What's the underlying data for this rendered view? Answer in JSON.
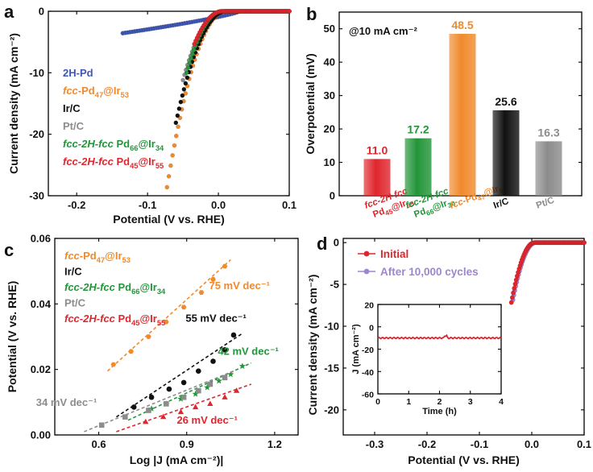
{
  "colors": {
    "blue": "#3f57b2",
    "orange": "#f08a2c",
    "black": "#111111",
    "gray": "#8c8c8c",
    "green": "#23953a",
    "red": "#e0262d",
    "purple": "#9f86cf"
  },
  "chart_data": [
    {
      "panel": "a",
      "type": "line",
      "title": "",
      "xlabel": "Potential (V vs. RHE)",
      "ylabel": "Current density (mA cm⁻²)",
      "xlim": [
        -0.24,
        0.1
      ],
      "ylim": [
        -30,
        0
      ],
      "xticks": [
        -0.2,
        -0.1,
        0.0,
        0.1
      ],
      "xtick_labels": [
        "-0.2",
        "-0.1",
        "0.0",
        "0.1"
      ],
      "yticks": [
        -30,
        -20,
        -10,
        0
      ],
      "ytick_labels": [
        "-30",
        "-20",
        "-10",
        "0"
      ],
      "legend": [
        {
          "pre": "",
          "it": "",
          "rest": "2H-Pd",
          "s1": "",
          "mid": "",
          "s2": "",
          "color": "blue"
        },
        {
          "pre": "",
          "it": "fcc",
          "rest": "-Pd",
          "s1": "47",
          "mid": "@Ir",
          "s2": "53",
          "color": "orange"
        },
        {
          "pre": "",
          "it": "",
          "rest": "Ir/C",
          "s1": "",
          "mid": "",
          "s2": "",
          "color": "black"
        },
        {
          "pre": "",
          "it": "",
          "rest": "Pt/C",
          "s1": "",
          "mid": "",
          "s2": "",
          "color": "gray"
        },
        {
          "pre": "",
          "it": "fcc-2H-fcc",
          "rest": " Pd",
          "s1": "66",
          "mid": "@Ir",
          "s2": "34",
          "color": "green"
        },
        {
          "pre": "",
          "it": "fcc-2H-fcc",
          "rest": " Pd",
          "s1": "45",
          "mid": "@Ir",
          "s2": "55",
          "color": "red"
        }
      ],
      "series": [
        {
          "name": "2H-Pd",
          "color": "blue",
          "onset": 0.03,
          "lower": -0.135,
          "scale": 0.06,
          "exp": 0.8
        },
        {
          "name": "fcc-Pd47@Ir53",
          "color": "orange",
          "onset": 0.01,
          "lower": -0.083,
          "scale": 0.0042,
          "exp": 2.0
        },
        {
          "name": "Ir/C",
          "color": "black",
          "onset": 0.01,
          "lower": -0.06,
          "scale": 0.0037,
          "exp": 2.0
        },
        {
          "name": "Pt/C",
          "color": "gray",
          "onset": 0.005,
          "lower": -0.05,
          "scale": 0.0037,
          "exp": 2.0
        },
        {
          "name": "fcc-2H-fcc Pd66@Ir34",
          "color": "green",
          "onset": 0.005,
          "lower": -0.045,
          "scale": 0.004,
          "exp": 2.0
        },
        {
          "name": "fcc-2H-fcc Pd45@Ir55",
          "color": "red",
          "onset": 0.005,
          "lower": -0.034,
          "scale": 0.0035,
          "exp": 2.0
        }
      ]
    },
    {
      "panel": "b",
      "type": "bar",
      "title": "@10 mA cm⁻²",
      "ylabel": "Overpotential (mV)",
      "ylim": [
        0,
        55
      ],
      "yticks": [
        0,
        10,
        20,
        30,
        40,
        50
      ],
      "ytick_labels": [
        "0",
        "10",
        "20",
        "30",
        "40",
        "50"
      ],
      "categories": [
        {
          "it1": "fcc-2H-fcc",
          "l2a": "Pd",
          "s1": "45",
          "l2b": "@Ir",
          "s2": "55",
          "color": "red"
        },
        {
          "it1": "fcc-2H-fcc",
          "l2a": "Pd",
          "s1": "66",
          "l2b": "@Ir",
          "s2": "34",
          "color": "green"
        },
        {
          "it1": "fcc",
          "l2a": "-Pd",
          "s1": "47",
          "l2b": "@Ir",
          "s2": "53",
          "color": "orange"
        },
        {
          "it1": "",
          "l2a": "Ir/C",
          "s1": "",
          "l2b": "",
          "s2": "",
          "color": "black"
        },
        {
          "it1": "",
          "l2a": "Pt/C",
          "s1": "",
          "l2b": "",
          "s2": "",
          "color": "gray"
        }
      ],
      "values": [
        11.0,
        17.2,
        48.5,
        25.6,
        16.3
      ],
      "value_labels": [
        "11.0",
        "17.2",
        "48.5",
        "25.6",
        "16.3"
      ]
    },
    {
      "panel": "c",
      "type": "scatter",
      "xlabel": "Log |J (mA cm⁻²)|",
      "ylabel": "Potential (V vs. RHE)",
      "xlim": [
        0.45,
        1.28
      ],
      "ylim": [
        0,
        0.06
      ],
      "xticks": [
        0.6,
        0.9,
        1.2
      ],
      "xtick_labels": [
        "0.6",
        "0.9",
        "1.2"
      ],
      "yticks": [
        0.0,
        0.02,
        0.04,
        0.06
      ],
      "ytick_labels": [
        "0.00",
        "0.02",
        "0.04",
        "0.06"
      ],
      "legend": [
        {
          "it": "fcc",
          "rest": "-Pd",
          "s1": "47",
          "mid": "@Ir",
          "s2": "53",
          "color": "orange"
        },
        {
          "it": "",
          "rest": "Ir/C",
          "s1": "",
          "mid": "",
          "s2": "",
          "color": "black"
        },
        {
          "it": "fcc-2H-fcc",
          "rest": " Pd",
          "s1": "66",
          "mid": "@Ir",
          "s2": "34",
          "color": "green"
        },
        {
          "it": "",
          "rest": "Pt/C",
          "s1": "",
          "mid": "",
          "s2": "",
          "color": "gray"
        },
        {
          "it": "fcc-2H-fcc",
          "rest": " Pd",
          "s1": "45",
          "mid": "@Ir",
          "s2": "55",
          "color": "red"
        }
      ],
      "series": [
        {
          "name": "fcc-Pd47@Ir53",
          "color": "orange",
          "marker": "hexagon",
          "x": [
            0.65,
            0.71,
            0.77,
            0.83,
            0.89,
            0.95,
            0.99,
            1.03
          ],
          "y": [
            0.0215,
            0.0255,
            0.03,
            0.0345,
            0.039,
            0.0435,
            0.0475,
            0.0515
          ],
          "fit": [
            0.63,
            0.0195,
            1.05,
            0.0535
          ],
          "slope_label": "75 mV dec⁻¹",
          "slope_at": [
            1.08,
            0.0445
          ]
        },
        {
          "name": "Ir/C",
          "color": "black",
          "marker": "circle",
          "x": [
            0.72,
            0.78,
            0.84,
            0.89,
            0.94,
            0.99,
            1.03,
            1.06
          ],
          "y": [
            0.0085,
            0.0115,
            0.014,
            0.016,
            0.0195,
            0.0225,
            0.026,
            0.0305
          ],
          "fit": [
            0.66,
            0.0055,
            1.09,
            0.031
          ],
          "slope_label": "55 mV dec⁻¹",
          "slope_at": [
            1.0,
            0.0345
          ]
        },
        {
          "name": "fcc-2H-fcc Pd66@Ir34",
          "color": "green",
          "marker": "star",
          "x": [
            0.78,
            0.83,
            0.88,
            0.93,
            0.97,
            1.01,
            1.05,
            1.09
          ],
          "y": [
            0.008,
            0.0095,
            0.011,
            0.0125,
            0.0145,
            0.0165,
            0.0185,
            0.021
          ],
          "fit": [
            0.7,
            0.0045,
            1.12,
            0.022
          ],
          "slope_label": "42 mV dec⁻¹",
          "slope_at": [
            1.11,
            0.0245
          ]
        },
        {
          "name": "Pt/C",
          "color": "gray",
          "marker": "square",
          "x": [
            0.61,
            0.69,
            0.77,
            0.83,
            0.89,
            0.94,
            0.98,
            1.03
          ],
          "y": [
            0.003,
            0.0055,
            0.0075,
            0.0095,
            0.0115,
            0.0135,
            0.0155,
            0.0175
          ],
          "fit": [
            0.55,
            0.001,
            1.06,
            0.0195
          ],
          "slope_label": "34 mV dec⁻¹",
          "slope_at": [
            0.49,
            0.0088
          ]
        },
        {
          "name": "fcc-2H-fcc Pd45@Ir55",
          "color": "red",
          "marker": "triangle",
          "x": [
            0.76,
            0.82,
            0.88,
            0.93,
            0.98,
            1.03,
            1.07
          ],
          "y": [
            0.004,
            0.0055,
            0.007,
            0.0085,
            0.0095,
            0.0115,
            0.0135
          ],
          "fit": [
            0.66,
            0.001,
            1.12,
            0.0155
          ],
          "slope_label": "26 mV dec⁻¹",
          "slope_at": [
            0.97,
            0.0035
          ]
        }
      ]
    },
    {
      "panel": "d",
      "type": "line",
      "xlabel": "Potential (V vs. RHE)",
      "ylabel": "Current density (mA cm⁻²)",
      "xlim": [
        -0.36,
        0.1
      ],
      "ylim": [
        -23,
        0.5
      ],
      "xticks": [
        -0.3,
        -0.2,
        -0.1,
        0.0,
        0.1
      ],
      "xtick_labels": [
        "-0.3",
        "-0.2",
        "-0.1",
        "0.0",
        "0.1"
      ],
      "yticks": [
        -20,
        -15,
        -10,
        -5,
        0
      ],
      "ytick_labels": [
        "-20",
        "-15",
        "-10",
        "-5",
        "0"
      ],
      "legend": [
        {
          "label": "Initial",
          "color": "red"
        },
        {
          "label": "After 10,000 cycles",
          "color": "purple"
        }
      ],
      "series": [
        {
          "name": "Initial",
          "color": "red",
          "onset": 0.005,
          "lower": -0.039,
          "scale": 0.0037,
          "exp": 2.0
        },
        {
          "name": "After 10,000 cycles",
          "color": "purple",
          "onset": 0.007,
          "lower": -0.036,
          "scale": 0.0037,
          "exp": 2.0
        }
      ],
      "inset": {
        "xlabel": "Time (h)",
        "ylabel": "J (mA cm⁻²)",
        "xlim": [
          0,
          4
        ],
        "ylim": [
          -60,
          20
        ],
        "xticks": [
          0,
          1,
          2,
          3,
          4
        ],
        "xtick_labels": [
          "0",
          "1",
          "2",
          "3",
          "4"
        ],
        "yticks": [
          -60,
          -40,
          -20,
          0,
          20
        ],
        "ytick_labels": [
          "-60",
          "-40",
          "-20",
          "0",
          "20"
        ],
        "series": {
          "name": "stability",
          "color": "red",
          "value": -10
        }
      }
    }
  ]
}
